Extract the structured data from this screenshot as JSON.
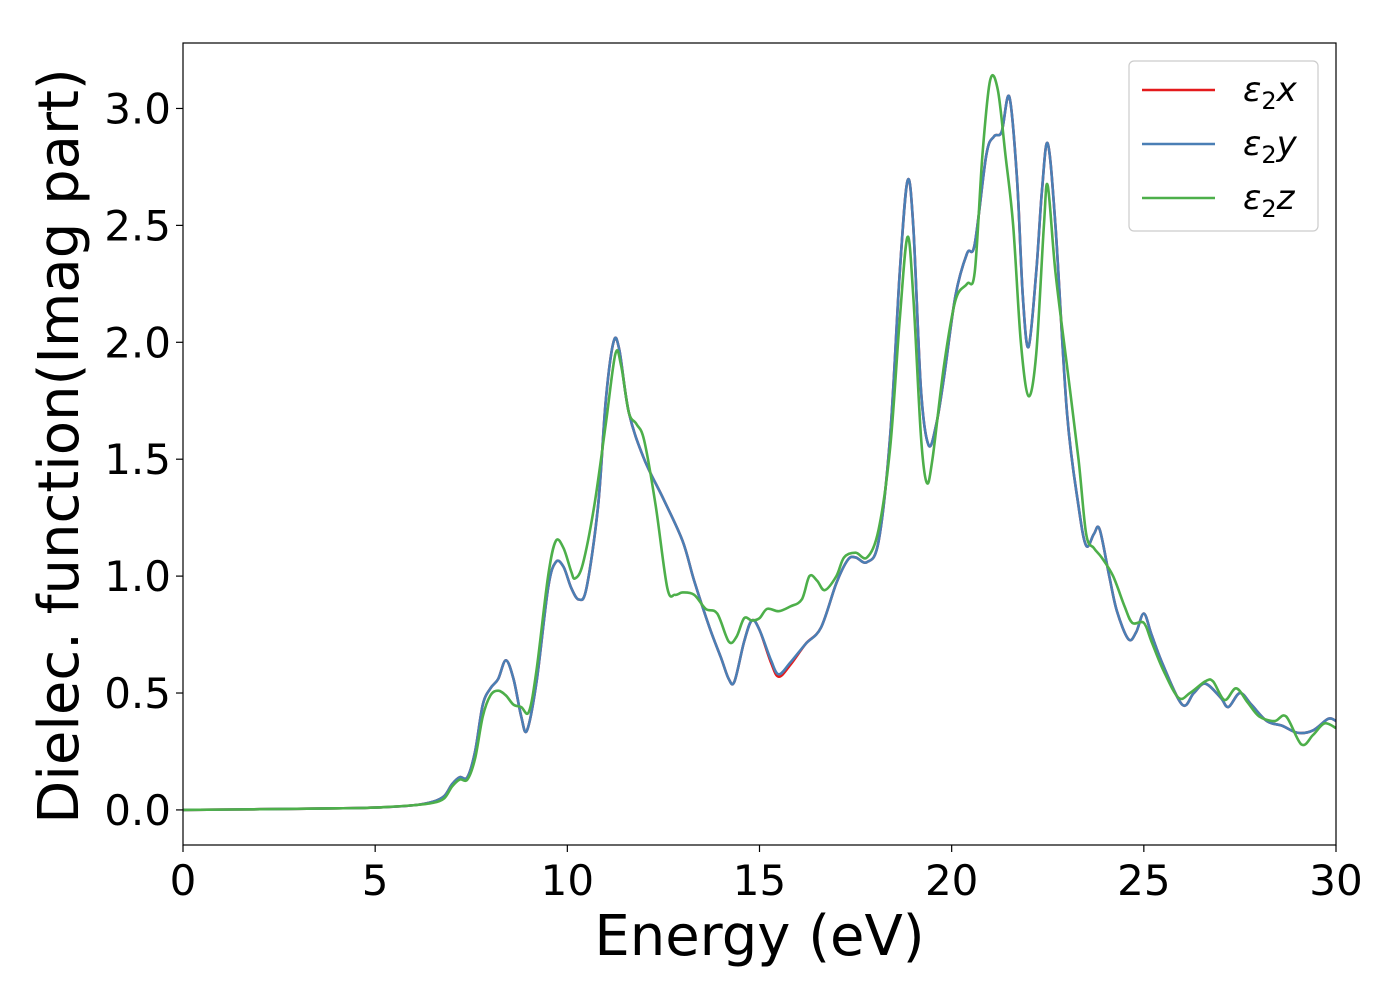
{
  "chart_data": {
    "type": "line",
    "title": "",
    "xlabel": "Energy (eV)",
    "ylabel": "Dielec. function(Imag part)",
    "xlim": [
      0,
      30
    ],
    "ylim": [
      -0.15,
      3.28
    ],
    "x_ticks": [
      0,
      5,
      10,
      15,
      20,
      25,
      30
    ],
    "x_tick_labels": [
      "0",
      "5",
      "10",
      "15",
      "20",
      "25",
      "30"
    ],
    "y_ticks": [
      0.0,
      0.5,
      1.0,
      1.5,
      2.0,
      2.5,
      3.0
    ],
    "y_tick_labels": [
      "0.0",
      "0.5",
      "1.0",
      "1.5",
      "2.0",
      "2.5",
      "3.0"
    ],
    "grid": false,
    "legend_position": "top-right",
    "series": [
      {
        "name": "ε₂x",
        "label_base": "ε",
        "label_sub": "2",
        "label_var": "x",
        "color": "#e41a1c",
        "points": [
          [
            0,
            0.0
          ],
          [
            2,
            0.003
          ],
          [
            4,
            0.007
          ],
          [
            5,
            0.01
          ],
          [
            6,
            0.02
          ],
          [
            6.5,
            0.035
          ],
          [
            6.8,
            0.06
          ],
          [
            7.0,
            0.11
          ],
          [
            7.2,
            0.14
          ],
          [
            7.4,
            0.14
          ],
          [
            7.6,
            0.25
          ],
          [
            7.8,
            0.45
          ],
          [
            8.0,
            0.52
          ],
          [
            8.2,
            0.56
          ],
          [
            8.4,
            0.64
          ],
          [
            8.6,
            0.56
          ],
          [
            8.8,
            0.4
          ],
          [
            8.95,
            0.34
          ],
          [
            9.2,
            0.55
          ],
          [
            9.5,
            0.95
          ],
          [
            9.7,
            1.06
          ],
          [
            9.9,
            1.04
          ],
          [
            10.1,
            0.95
          ],
          [
            10.3,
            0.9
          ],
          [
            10.5,
            0.95
          ],
          [
            10.8,
            1.3
          ],
          [
            11.0,
            1.75
          ],
          [
            11.2,
            2.0
          ],
          [
            11.35,
            1.97
          ],
          [
            11.6,
            1.7
          ],
          [
            12.0,
            1.5
          ],
          [
            12.5,
            1.33
          ],
          [
            13.0,
            1.15
          ],
          [
            13.3,
            0.98
          ],
          [
            13.7,
            0.78
          ],
          [
            14.0,
            0.65
          ],
          [
            14.2,
            0.56
          ],
          [
            14.35,
            0.55
          ],
          [
            14.6,
            0.72
          ],
          [
            14.8,
            0.81
          ],
          [
            15.0,
            0.77
          ],
          [
            15.3,
            0.63
          ],
          [
            15.5,
            0.57
          ],
          [
            15.8,
            0.62
          ],
          [
            16.2,
            0.71
          ],
          [
            16.6,
            0.78
          ],
          [
            17.0,
            0.97
          ],
          [
            17.3,
            1.07
          ],
          [
            17.5,
            1.08
          ],
          [
            17.8,
            1.06
          ],
          [
            18.1,
            1.15
          ],
          [
            18.4,
            1.6
          ],
          [
            18.65,
            2.3
          ],
          [
            18.85,
            2.69
          ],
          [
            19.0,
            2.5
          ],
          [
            19.2,
            1.8
          ],
          [
            19.4,
            1.56
          ],
          [
            19.6,
            1.65
          ],
          [
            19.8,
            1.85
          ],
          [
            20.1,
            2.2
          ],
          [
            20.4,
            2.38
          ],
          [
            20.6,
            2.42
          ],
          [
            20.9,
            2.8
          ],
          [
            21.1,
            2.88
          ],
          [
            21.3,
            2.9
          ],
          [
            21.5,
            3.05
          ],
          [
            21.7,
            2.7
          ],
          [
            21.85,
            2.2
          ],
          [
            22.0,
            1.98
          ],
          [
            22.2,
            2.3
          ],
          [
            22.35,
            2.65
          ],
          [
            22.5,
            2.85
          ],
          [
            22.7,
            2.5
          ],
          [
            23.0,
            1.7
          ],
          [
            23.3,
            1.3
          ],
          [
            23.5,
            1.13
          ],
          [
            23.7,
            1.18
          ],
          [
            23.85,
            1.2
          ],
          [
            24.1,
            1.0
          ],
          [
            24.3,
            0.85
          ],
          [
            24.6,
            0.73
          ],
          [
            24.8,
            0.76
          ],
          [
            25.0,
            0.84
          ],
          [
            25.2,
            0.75
          ],
          [
            25.5,
            0.62
          ],
          [
            26.0,
            0.45
          ],
          [
            26.3,
            0.5
          ],
          [
            26.6,
            0.54
          ],
          [
            27.0,
            0.48
          ],
          [
            27.2,
            0.44
          ],
          [
            27.5,
            0.5
          ],
          [
            27.8,
            0.45
          ],
          [
            28.2,
            0.38
          ],
          [
            28.6,
            0.36
          ],
          [
            29.0,
            0.33
          ],
          [
            29.4,
            0.34
          ],
          [
            29.8,
            0.39
          ],
          [
            30,
            0.38
          ]
        ]
      },
      {
        "name": "ε₂y",
        "label_base": "ε",
        "label_sub": "2",
        "label_var": "y",
        "color": "#4a7fb5",
        "points": [
          [
            0,
            0.0
          ],
          [
            2,
            0.003
          ],
          [
            4,
            0.007
          ],
          [
            5,
            0.01
          ],
          [
            6,
            0.02
          ],
          [
            6.5,
            0.035
          ],
          [
            6.8,
            0.06
          ],
          [
            7.0,
            0.11
          ],
          [
            7.2,
            0.14
          ],
          [
            7.4,
            0.14
          ],
          [
            7.6,
            0.25
          ],
          [
            7.8,
            0.45
          ],
          [
            8.0,
            0.52
          ],
          [
            8.2,
            0.56
          ],
          [
            8.4,
            0.64
          ],
          [
            8.6,
            0.56
          ],
          [
            8.8,
            0.4
          ],
          [
            8.95,
            0.34
          ],
          [
            9.2,
            0.55
          ],
          [
            9.5,
            0.95
          ],
          [
            9.7,
            1.06
          ],
          [
            9.9,
            1.04
          ],
          [
            10.1,
            0.95
          ],
          [
            10.3,
            0.9
          ],
          [
            10.5,
            0.95
          ],
          [
            10.8,
            1.3
          ],
          [
            11.0,
            1.75
          ],
          [
            11.2,
            2.0
          ],
          [
            11.35,
            1.97
          ],
          [
            11.6,
            1.7
          ],
          [
            12.0,
            1.5
          ],
          [
            12.5,
            1.33
          ],
          [
            13.0,
            1.15
          ],
          [
            13.3,
            0.98
          ],
          [
            13.7,
            0.78
          ],
          [
            14.0,
            0.65
          ],
          [
            14.2,
            0.56
          ],
          [
            14.35,
            0.55
          ],
          [
            14.6,
            0.72
          ],
          [
            14.8,
            0.81
          ],
          [
            15.0,
            0.77
          ],
          [
            15.3,
            0.64
          ],
          [
            15.5,
            0.58
          ],
          [
            15.8,
            0.63
          ],
          [
            16.2,
            0.71
          ],
          [
            16.6,
            0.78
          ],
          [
            17.0,
            0.97
          ],
          [
            17.3,
            1.07
          ],
          [
            17.5,
            1.08
          ],
          [
            17.8,
            1.06
          ],
          [
            18.1,
            1.15
          ],
          [
            18.4,
            1.6
          ],
          [
            18.65,
            2.3
          ],
          [
            18.85,
            2.69
          ],
          [
            19.0,
            2.5
          ],
          [
            19.2,
            1.8
          ],
          [
            19.4,
            1.56
          ],
          [
            19.6,
            1.65
          ],
          [
            19.8,
            1.85
          ],
          [
            20.1,
            2.2
          ],
          [
            20.4,
            2.38
          ],
          [
            20.6,
            2.42
          ],
          [
            20.9,
            2.8
          ],
          [
            21.1,
            2.88
          ],
          [
            21.3,
            2.9
          ],
          [
            21.5,
            3.05
          ],
          [
            21.7,
            2.7
          ],
          [
            21.85,
            2.2
          ],
          [
            22.0,
            1.98
          ],
          [
            22.2,
            2.3
          ],
          [
            22.35,
            2.65
          ],
          [
            22.5,
            2.85
          ],
          [
            22.7,
            2.5
          ],
          [
            23.0,
            1.7
          ],
          [
            23.3,
            1.3
          ],
          [
            23.5,
            1.13
          ],
          [
            23.7,
            1.18
          ],
          [
            23.85,
            1.2
          ],
          [
            24.1,
            1.0
          ],
          [
            24.3,
            0.85
          ],
          [
            24.6,
            0.73
          ],
          [
            24.8,
            0.76
          ],
          [
            25.0,
            0.84
          ],
          [
            25.2,
            0.75
          ],
          [
            25.5,
            0.62
          ],
          [
            26.0,
            0.45
          ],
          [
            26.3,
            0.5
          ],
          [
            26.6,
            0.54
          ],
          [
            27.0,
            0.48
          ],
          [
            27.2,
            0.44
          ],
          [
            27.5,
            0.5
          ],
          [
            27.8,
            0.45
          ],
          [
            28.2,
            0.38
          ],
          [
            28.6,
            0.36
          ],
          [
            29.0,
            0.33
          ],
          [
            29.4,
            0.34
          ],
          [
            29.8,
            0.39
          ],
          [
            30,
            0.38
          ]
        ]
      },
      {
        "name": "ε₂z",
        "label_base": "ε",
        "label_sub": "2",
        "label_var": "z",
        "color": "#4daf4a",
        "points": [
          [
            0,
            0.0
          ],
          [
            2,
            0.003
          ],
          [
            4,
            0.007
          ],
          [
            5,
            0.01
          ],
          [
            6,
            0.02
          ],
          [
            6.5,
            0.03
          ],
          [
            6.8,
            0.05
          ],
          [
            7.0,
            0.1
          ],
          [
            7.2,
            0.13
          ],
          [
            7.4,
            0.13
          ],
          [
            7.6,
            0.22
          ],
          [
            7.8,
            0.4
          ],
          [
            8.0,
            0.49
          ],
          [
            8.2,
            0.51
          ],
          [
            8.4,
            0.49
          ],
          [
            8.6,
            0.45
          ],
          [
            8.8,
            0.44
          ],
          [
            9.0,
            0.42
          ],
          [
            9.2,
            0.6
          ],
          [
            9.5,
            1.0
          ],
          [
            9.7,
            1.15
          ],
          [
            9.9,
            1.12
          ],
          [
            10.1,
            1.02
          ],
          [
            10.2,
            0.99
          ],
          [
            10.4,
            1.05
          ],
          [
            10.7,
            1.3
          ],
          [
            11.0,
            1.65
          ],
          [
            11.25,
            1.95
          ],
          [
            11.4,
            1.9
          ],
          [
            11.6,
            1.7
          ],
          [
            11.8,
            1.65
          ],
          [
            12.0,
            1.58
          ],
          [
            12.3,
            1.3
          ],
          [
            12.6,
            0.95
          ],
          [
            12.8,
            0.92
          ],
          [
            13.0,
            0.93
          ],
          [
            13.3,
            0.92
          ],
          [
            13.6,
            0.86
          ],
          [
            13.9,
            0.84
          ],
          [
            14.2,
            0.72
          ],
          [
            14.4,
            0.74
          ],
          [
            14.6,
            0.82
          ],
          [
            14.8,
            0.81
          ],
          [
            15.0,
            0.82
          ],
          [
            15.2,
            0.86
          ],
          [
            15.5,
            0.85
          ],
          [
            15.8,
            0.87
          ],
          [
            16.1,
            0.9
          ],
          [
            16.3,
            1.0
          ],
          [
            16.5,
            0.98
          ],
          [
            16.7,
            0.94
          ],
          [
            17.0,
            1.0
          ],
          [
            17.2,
            1.08
          ],
          [
            17.5,
            1.1
          ],
          [
            17.8,
            1.08
          ],
          [
            18.1,
            1.2
          ],
          [
            18.4,
            1.55
          ],
          [
            18.65,
            2.1
          ],
          [
            18.85,
            2.45
          ],
          [
            19.0,
            2.2
          ],
          [
            19.2,
            1.6
          ],
          [
            19.35,
            1.4
          ],
          [
            19.5,
            1.5
          ],
          [
            19.8,
            1.9
          ],
          [
            20.1,
            2.18
          ],
          [
            20.4,
            2.25
          ],
          [
            20.6,
            2.3
          ],
          [
            20.8,
            2.8
          ],
          [
            21.0,
            3.12
          ],
          [
            21.2,
            3.08
          ],
          [
            21.4,
            2.8
          ],
          [
            21.6,
            2.5
          ],
          [
            21.8,
            2.0
          ],
          [
            22.0,
            1.77
          ],
          [
            22.2,
            1.95
          ],
          [
            22.4,
            2.5
          ],
          [
            22.5,
            2.67
          ],
          [
            22.7,
            2.3
          ],
          [
            23.0,
            1.9
          ],
          [
            23.3,
            1.5
          ],
          [
            23.5,
            1.18
          ],
          [
            23.7,
            1.12
          ],
          [
            23.9,
            1.08
          ],
          [
            24.2,
            1.0
          ],
          [
            24.5,
            0.87
          ],
          [
            24.7,
            0.8
          ],
          [
            25.0,
            0.8
          ],
          [
            25.2,
            0.72
          ],
          [
            25.5,
            0.6
          ],
          [
            25.9,
            0.48
          ],
          [
            26.2,
            0.5
          ],
          [
            26.6,
            0.55
          ],
          [
            26.8,
            0.55
          ],
          [
            27.1,
            0.47
          ],
          [
            27.4,
            0.52
          ],
          [
            27.7,
            0.46
          ],
          [
            28.0,
            0.4
          ],
          [
            28.4,
            0.38
          ],
          [
            28.7,
            0.4
          ],
          [
            29.1,
            0.28
          ],
          [
            29.4,
            0.32
          ],
          [
            29.7,
            0.37
          ],
          [
            30,
            0.35
          ]
        ]
      }
    ]
  }
}
